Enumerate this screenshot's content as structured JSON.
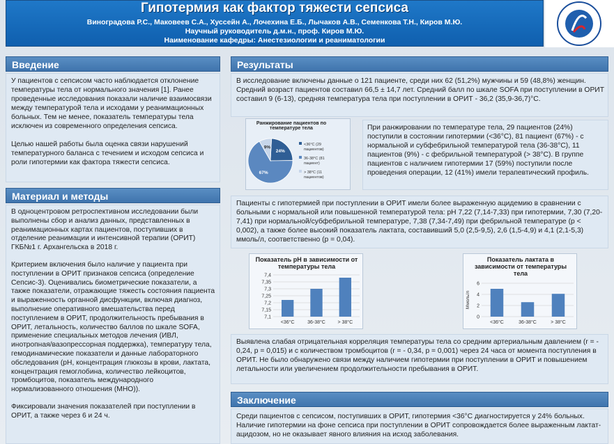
{
  "header": {
    "title": "Гипотермия как фактор тяжести сепсиса",
    "authors": "Виноградова Р.С., Маковеев С.А., Хуссейн А., Лочехина Е.Б., Лычаков А.В., Семенкова Т.Н., Киров М.Ю.",
    "supervisor": "Научный руководитель д.м.н., проф. Киров М.Ю.",
    "department": "Наименование кафедры: Анестезиологии и реаниматологии"
  },
  "intro": {
    "heading": "Введение",
    "p1": "У пациентов с сепсисом часто наблюдается отклонение температуры тела от нормального значения [1]. Ранее проведенные исследования показали наличие взаимосвязи между температурой тела и исходами у реанимационных больных. Тем не менее, показатель температуры тела исключен из современного определения сепсиса.",
    "p2": "Целью нашей работы была оценка связи нарушений температурного баланса с течением и исходом сепсиса и роли гипотермии как фактора тяжести сепсиса."
  },
  "methods": {
    "heading": "Материал и методы",
    "p1": "В одноцентровом ретроспективном исследовании были выполнены сбор и анализ данных, представленных в реанимационных картах пациентов, поступивших в отделение реанимации и интенсивной терапии (ОРИТ) ГКБ№1 г. Архангельска в 2018 г.",
    "p2": "Критерием включения было наличие у пациента при поступлении в ОРИТ признаков сепсиса (определение Сепсис-3). Оценивались биометрические показатели, а также показатели, отражающие тяжесть состояния пациента и выраженность органной дисфункции, включая диагноз, выполнение оперативного вмешательства перед поступлением в ОРИТ, продолжительность пребывания в ОРИТ, летальность, количество баллов по шкале SOFA, применение специальных методов лечения (ИВЛ, инотропная/вазопрессорная поддержка), температуру тела, гемодинамические показатели и данные лабораторного обследования (рН, концентрация глюкозы в крови, лактата, концентрация гемоглобина, количество лейкоцитов, тромбоцитов, показатель международного нормализованного отношения (МНО)).",
    "p3": "Фиксировали значения показателей при поступлении в ОРИТ, а также через 6 и 24 ч."
  },
  "results": {
    "heading": "Результаты",
    "p1": "В исследование включены данные о 121 пациенте, среди них 62 (51,2%) мужчины и 59 (48,8%) женщин. Средний возраст пациентов составил 66,5 ± 14,7 лет. Средний балл по шкале SOFA при поступлении в ОРИТ составил 9 (6-13), средняя температура тела при поступлении в ОРИТ - 36,2 (35,9-36,7)°С.",
    "p2": "При ранжировании по температуре тела, 29 пациентов (24%) поступили в состоянии гипотермии (<36°C), 81 пациент (67%) - с нормальной и субфебрильной температурой тела (36-38°С), 11 пациентов (9%) - с фебрильной температурой (> 38°С). В группе пациентов с наличием гипотермии 17 (59%) поступили после проведения операции, 12 (41%) имели терапевтический профиль.",
    "p3": "Пациенты с гипотермией при поступлении в ОРИТ имели более выраженную ацидемию в сравнении с больными с нормальной или повышенной температурой тела: рН 7,22 (7,14-7,33) при гипотермии, 7,30 (7,20-7,41) при нормальной/субфебрильной температуре, 7,38 (7,34-7,49) при фебрильной температуре (р < 0,002), а также более высокий показатель лактата, составивший 5,0 (2,5-9,5), 2,6 (1,5-4,9) и 4,1 (2,1-5,3) ммоль/л, соответственно (р = 0,04).",
    "p4": "Выявлена слабая отрицательная корреляция температуры тела со средним артериальным давлением (r = - 0,24, p = 0,015) и с количеством тромбоцитов (r = - 0,34, p = 0,001) через 24 часа от момента поступления в ОРИТ. Не было обнаружено связи между наличием гипотермии при поступлении в ОРИТ и повышением летальности или увеличением продолжительности пребывания в ОРИТ."
  },
  "conclusion": {
    "heading": "Заключение",
    "p1": "Среди пациентов с сепсисом, поступивших в ОРИТ, гипотермия <36°С диагностируется у 24% больных. Наличие гипотермии на фоне сепсиса при поступлении в ОРИТ сопровождается более выраженным лактат-ацидозом, но не оказывает явного влияния на исход заболевания."
  },
  "chart_data": [
    {
      "type": "pie",
      "title": "Ранжирование пациентов по температуре тела",
      "slices": [
        {
          "label": "<36°C (29 пациентов)",
          "value": 24,
          "pct_label": "24%",
          "color": "#2f5e95"
        },
        {
          "label": "36-38°C (81 пациент)",
          "value": 67,
          "pct_label": "67%",
          "color": "#5b88c0"
        },
        {
          "label": "> 38°C (11 пациентов)",
          "value": 9,
          "pct_label": "9%",
          "color": "#c7d6ea"
        }
      ]
    },
    {
      "type": "bar",
      "title": "Показатель рН в зависимости от температуры тела",
      "categories": [
        "<36°C",
        "36-38°C",
        "> 38°C"
      ],
      "values": [
        7.22,
        7.3,
        7.38
      ],
      "yticks": [
        "7,4",
        "7,35",
        "7,3",
        "7,25",
        "7,2",
        "7,15",
        "7,1"
      ],
      "ylim": [
        7.1,
        7.4
      ],
      "color": "#4f81bd"
    },
    {
      "type": "bar",
      "title": "Показатель лактата в зависимости от температуры тела",
      "ylabel": "Ммоль/л",
      "categories": [
        "<36°C",
        "36-38°C",
        "> 38°C"
      ],
      "values": [
        5.0,
        2.6,
        4.1
      ],
      "yticks": [
        "6",
        "4",
        "2",
        "0"
      ],
      "ylim": [
        0,
        6
      ],
      "color": "#4f81bd"
    }
  ],
  "logo": {
    "text": "СЕВЕРНЫЙ ГОСУДАРСТВЕННЫЙ МЕДИЦИНСКИЙ УНИВЕРСИТЕТ"
  }
}
